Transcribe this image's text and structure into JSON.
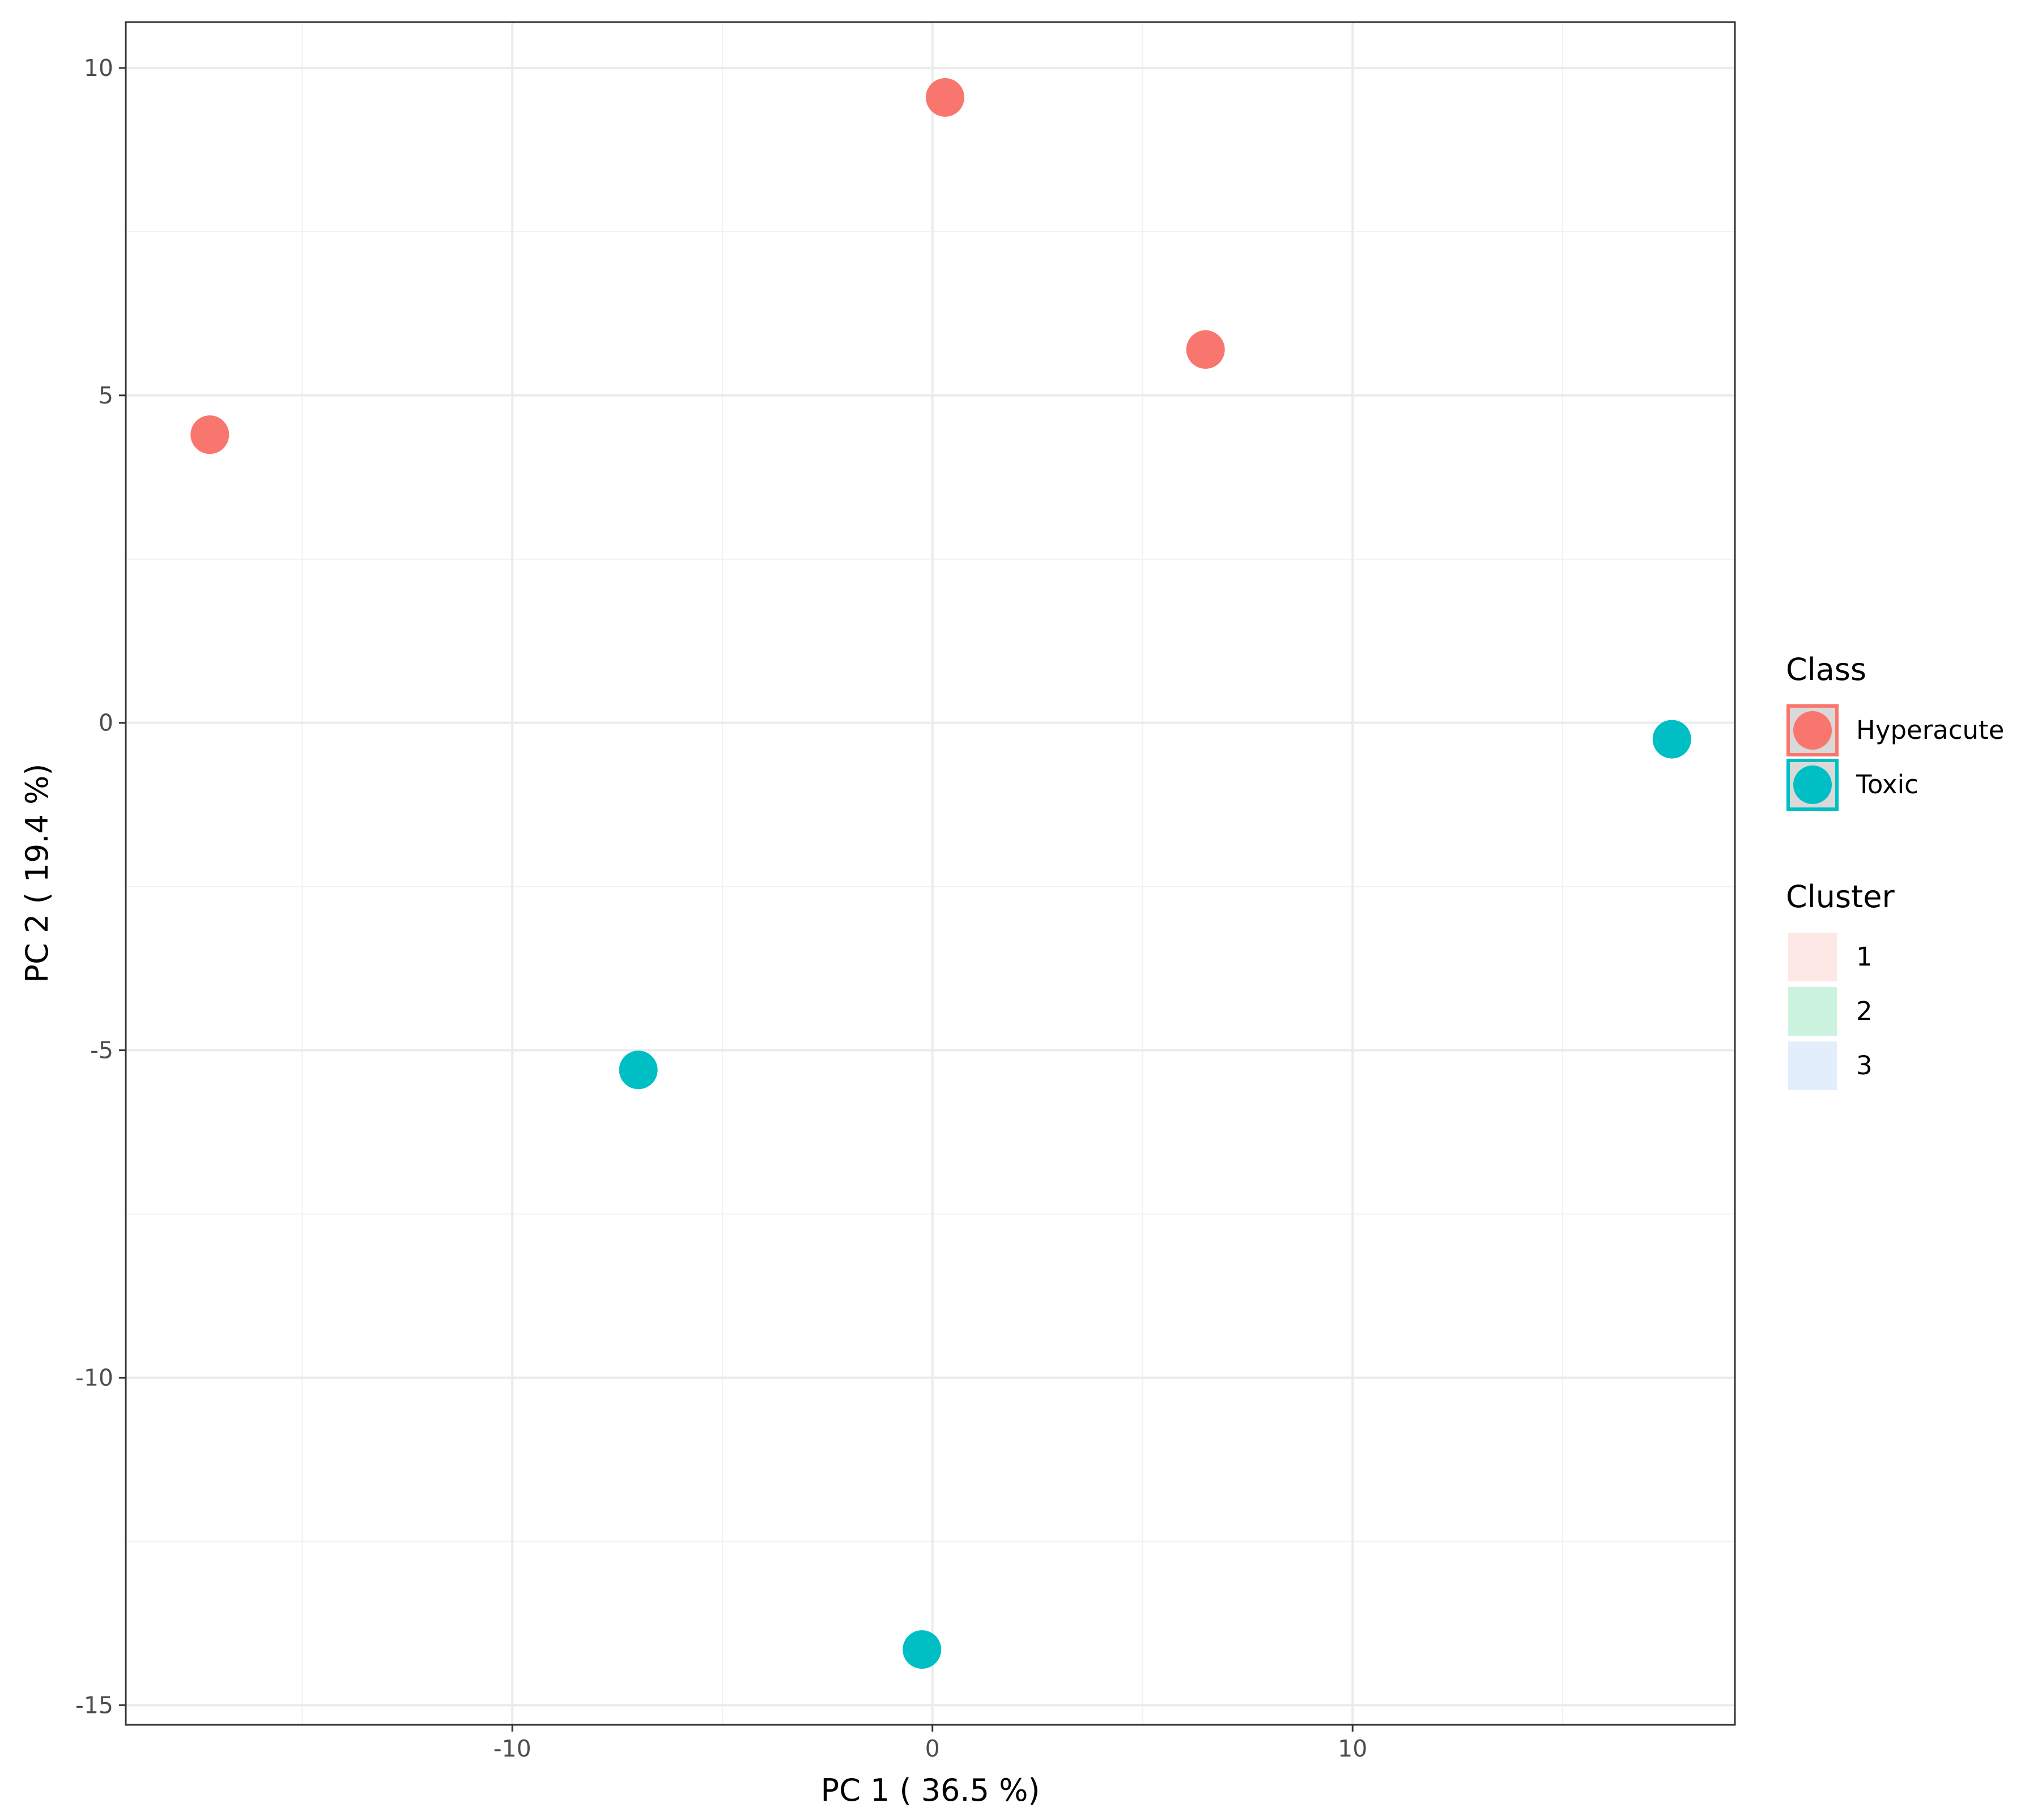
{
  "chart_data": {
    "type": "scatter",
    "title": "",
    "xlabel": "PC 1 ( 36.5 %)",
    "ylabel": "PC 2 ( 19.4 %)",
    "xlim": [
      -19.2,
      19.1
    ],
    "ylim": [
      -15.3,
      10.7
    ],
    "x_ticks": [
      -10,
      0,
      10
    ],
    "y_ticks": [
      -15,
      -10,
      -5,
      0,
      5,
      10
    ],
    "x_tick_labels": [
      "-10",
      "0",
      "10"
    ],
    "y_tick_labels": [
      "-15",
      "-10",
      "-5",
      "0",
      "5",
      "10"
    ],
    "grid": true,
    "legend_position": "right",
    "series": [
      {
        "name": "Hyperacute",
        "color": "#F8766D",
        "points": [
          {
            "x": -17.2,
            "y": 4.4
          },
          {
            "x": 0.3,
            "y": 9.55
          },
          {
            "x": 6.5,
            "y": 5.7
          }
        ]
      },
      {
        "name": "Toxic",
        "color": "#00BFC4",
        "points": [
          {
            "x": -7.0,
            "y": -5.3
          },
          {
            "x": -0.25,
            "y": -14.15
          },
          {
            "x": 17.6,
            "y": -0.25
          }
        ]
      }
    ],
    "legends": {
      "class": {
        "title": "Class",
        "entries": [
          {
            "label": "Hyperacute",
            "color": "#F8766D"
          },
          {
            "label": "Toxic",
            "color": "#00BFC4"
          }
        ]
      },
      "cluster": {
        "title": "Cluster",
        "entries": [
          {
            "label": "1",
            "color": "#FDE8E6"
          },
          {
            "label": "2",
            "color": "#CCF2E0"
          },
          {
            "label": "3",
            "color": "#E3EEFC"
          }
        ]
      }
    }
  }
}
